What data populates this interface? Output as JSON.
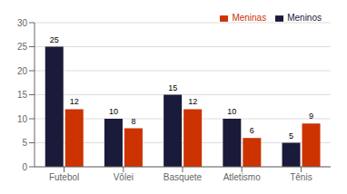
{
  "chart_data": {
    "type": "bar",
    "categories": [
      "Futebol",
      "Vôlei",
      "Basquete",
      "Atletismo",
      "Tênis"
    ],
    "series": [
      {
        "name": "Meninos",
        "color": "#1a1a3a",
        "values": [
          25,
          10,
          15,
          10,
          5
        ]
      },
      {
        "name": "Meninas",
        "color": "#cc3300",
        "values": [
          12,
          8,
          12,
          6,
          9
        ]
      }
    ],
    "ylim": [
      0,
      30
    ],
    "yticks": [
      0,
      5,
      10,
      15,
      20,
      25,
      30
    ],
    "grid": true,
    "legend": "upper right",
    "data_labels": true
  }
}
